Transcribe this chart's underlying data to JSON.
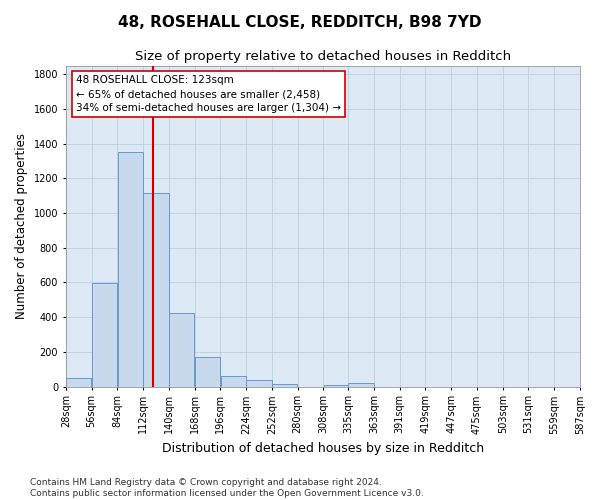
{
  "title_line1": "48, ROSEHALL CLOSE, REDDITCH, B98 7YD",
  "title_line2": "Size of property relative to detached houses in Redditch",
  "xlabel": "Distribution of detached houses by size in Redditch",
  "ylabel": "Number of detached properties",
  "bin_edges": [
    28,
    56,
    84,
    112,
    140,
    168,
    196,
    224,
    252,
    280,
    308,
    335,
    363,
    391,
    419,
    447,
    475,
    503,
    531,
    559,
    587
  ],
  "bar_heights": [
    50,
    595,
    1350,
    1115,
    425,
    170,
    60,
    40,
    15,
    0,
    10,
    20,
    0,
    0,
    0,
    0,
    0,
    0,
    0,
    0
  ],
  "bar_color": "#c8d9ee",
  "bar_edge_color": "#6699cc",
  "background_color": "#ffffff",
  "plot_bg_color": "#dce9f5",
  "grid_color": "#b8c8d8",
  "vline_x": 123,
  "vline_color": "#cc0000",
  "annotation_box_text": "48 ROSEHALL CLOSE: 123sqm\n← 65% of detached houses are smaller (2,458)\n34% of semi-detached houses are larger (1,304) →",
  "annotation_box_color": "#cc0000",
  "ylim": [
    0,
    1850
  ],
  "yticks": [
    0,
    200,
    400,
    600,
    800,
    1000,
    1200,
    1400,
    1600,
    1800
  ],
  "footnote": "Contains HM Land Registry data © Crown copyright and database right 2024.\nContains public sector information licensed under the Open Government Licence v3.0.",
  "title_fontsize": 11,
  "subtitle_fontsize": 9.5,
  "ylabel_fontsize": 8.5,
  "xlabel_fontsize": 9,
  "tick_fontsize": 7,
  "annotation_fontsize": 7.5,
  "footnote_fontsize": 6.5
}
